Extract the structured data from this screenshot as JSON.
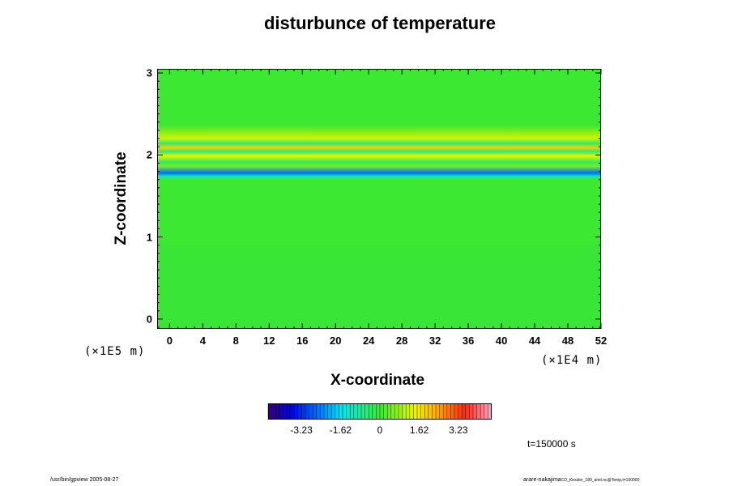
{
  "chart_data": {
    "type": "heatmap",
    "title": "disturbunce of temperature",
    "xlabel": "X-coordinate",
    "ylabel": "Z-coordinate",
    "xunit": "(×1E4 m)",
    "yunit": "(×1E5 m)",
    "xlim": [
      -1.5,
      52
    ],
    "ylim": [
      -0.12,
      3.05
    ],
    "xticks": [
      "0",
      "4",
      "8",
      "12",
      "16",
      "20",
      "24",
      "28",
      "32",
      "36",
      "40",
      "44",
      "48",
      "52"
    ],
    "yticks": [
      "0",
      "1",
      "2",
      "3"
    ],
    "background_value": 0,
    "bands": [
      {
        "z": 2.28,
        "value": 0.6
      },
      {
        "z": 2.2,
        "value": 1.2
      },
      {
        "z": 2.14,
        "value": -0.5
      },
      {
        "z": 2.09,
        "value": 1.9
      },
      {
        "z": 2.04,
        "value": -0.6
      },
      {
        "z": 1.99,
        "value": 1.4
      },
      {
        "z": 1.91,
        "value": -0.3
      },
      {
        "z": 1.86,
        "value": 0.5
      },
      {
        "z": 1.78,
        "value": -2.6
      },
      {
        "z": 1.74,
        "value": -1.2
      }
    ],
    "colorbar": {
      "range": [
        -4.6,
        4.6
      ],
      "tick_values": [
        -3.23,
        -1.62,
        0,
        1.62,
        3.23
      ],
      "tick_labels": [
        "-3.23",
        "-1.62",
        "0",
        "1.62",
        "3.23"
      ]
    },
    "time_label": "t=150000 s"
  },
  "footer": {
    "left": "/usr/bin/gpview 2005-08-27",
    "right_name": "arare-nakajima",
    "right_file": "CO_Kessler_180_anel.nc@Temp,t=150000"
  }
}
